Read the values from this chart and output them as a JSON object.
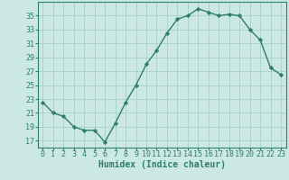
{
  "x": [
    0,
    1,
    2,
    3,
    4,
    5,
    6,
    7,
    8,
    9,
    10,
    11,
    12,
    13,
    14,
    15,
    16,
    17,
    18,
    19,
    20,
    21,
    22,
    23
  ],
  "y": [
    22.5,
    21.0,
    20.5,
    19.0,
    18.5,
    18.5,
    16.8,
    19.5,
    22.5,
    25.0,
    28.0,
    30.0,
    32.5,
    34.5,
    35.0,
    36.0,
    35.5,
    35.0,
    35.2,
    35.0,
    33.0,
    31.5,
    27.5,
    26.5
  ],
  "line_color": "#2e7d6e",
  "marker": "D",
  "marker_size": 2.2,
  "bg_color": "#cce8e4",
  "grid_color": "#a8cfc9",
  "axis_color": "#2e7d6e",
  "xlabel": "Humidex (Indice chaleur)",
  "xlim": [
    -0.5,
    23.5
  ],
  "ylim": [
    16.0,
    37.0
  ],
  "yticks": [
    17,
    19,
    21,
    23,
    25,
    27,
    29,
    31,
    33,
    35
  ],
  "xticks": [
    0,
    1,
    2,
    3,
    4,
    5,
    6,
    7,
    8,
    9,
    10,
    11,
    12,
    13,
    14,
    15,
    16,
    17,
    18,
    19,
    20,
    21,
    22,
    23
  ],
  "xtick_labels": [
    "0",
    "1",
    "2",
    "3",
    "4",
    "5",
    "6",
    "7",
    "8",
    "9",
    "10",
    "11",
    "12",
    "13",
    "14",
    "15",
    "16",
    "17",
    "18",
    "19",
    "20",
    "21",
    "22",
    "23"
  ],
  "spine_color": "#2e7d6e",
  "xlabel_fontsize": 7,
  "tick_fontsize": 6
}
